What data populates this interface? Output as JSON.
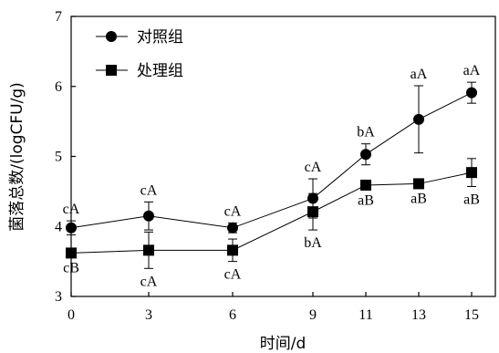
{
  "chart_data": {
    "type": "line",
    "xlabel": "时间/d",
    "ylabel": "菌落总数/(logCFU/g)",
    "ylim": [
      3,
      7
    ],
    "yticks": [
      3,
      4,
      5,
      6,
      7
    ],
    "x_categories": [
      "0",
      "3",
      "6",
      "9",
      "11",
      "13",
      "15"
    ],
    "grid": false,
    "legend_position": "top-left",
    "series": [
      {
        "name": "对照组",
        "marker": "circle",
        "values": [
          3.98,
          4.15,
          3.98,
          4.4,
          5.03,
          5.53,
          5.91
        ],
        "errors": [
          0.1,
          0.2,
          0.07,
          0.28,
          0.15,
          0.48,
          0.15
        ],
        "annotations": [
          "cA",
          "cA",
          "cA",
          "cA",
          "bA",
          "aA",
          "aA"
        ],
        "annotation_position": "above"
      },
      {
        "name": "处理组",
        "marker": "square",
        "values": [
          3.62,
          3.66,
          3.66,
          4.21,
          4.59,
          4.61,
          4.77
        ],
        "errors": [
          0.03,
          0.26,
          0.16,
          0.26,
          0.03,
          0.03,
          0.2
        ],
        "annotations": [
          "cB",
          "cA",
          "cA",
          "bA",
          "aB",
          "aB",
          "aB"
        ],
        "annotation_position": "below"
      }
    ]
  }
}
